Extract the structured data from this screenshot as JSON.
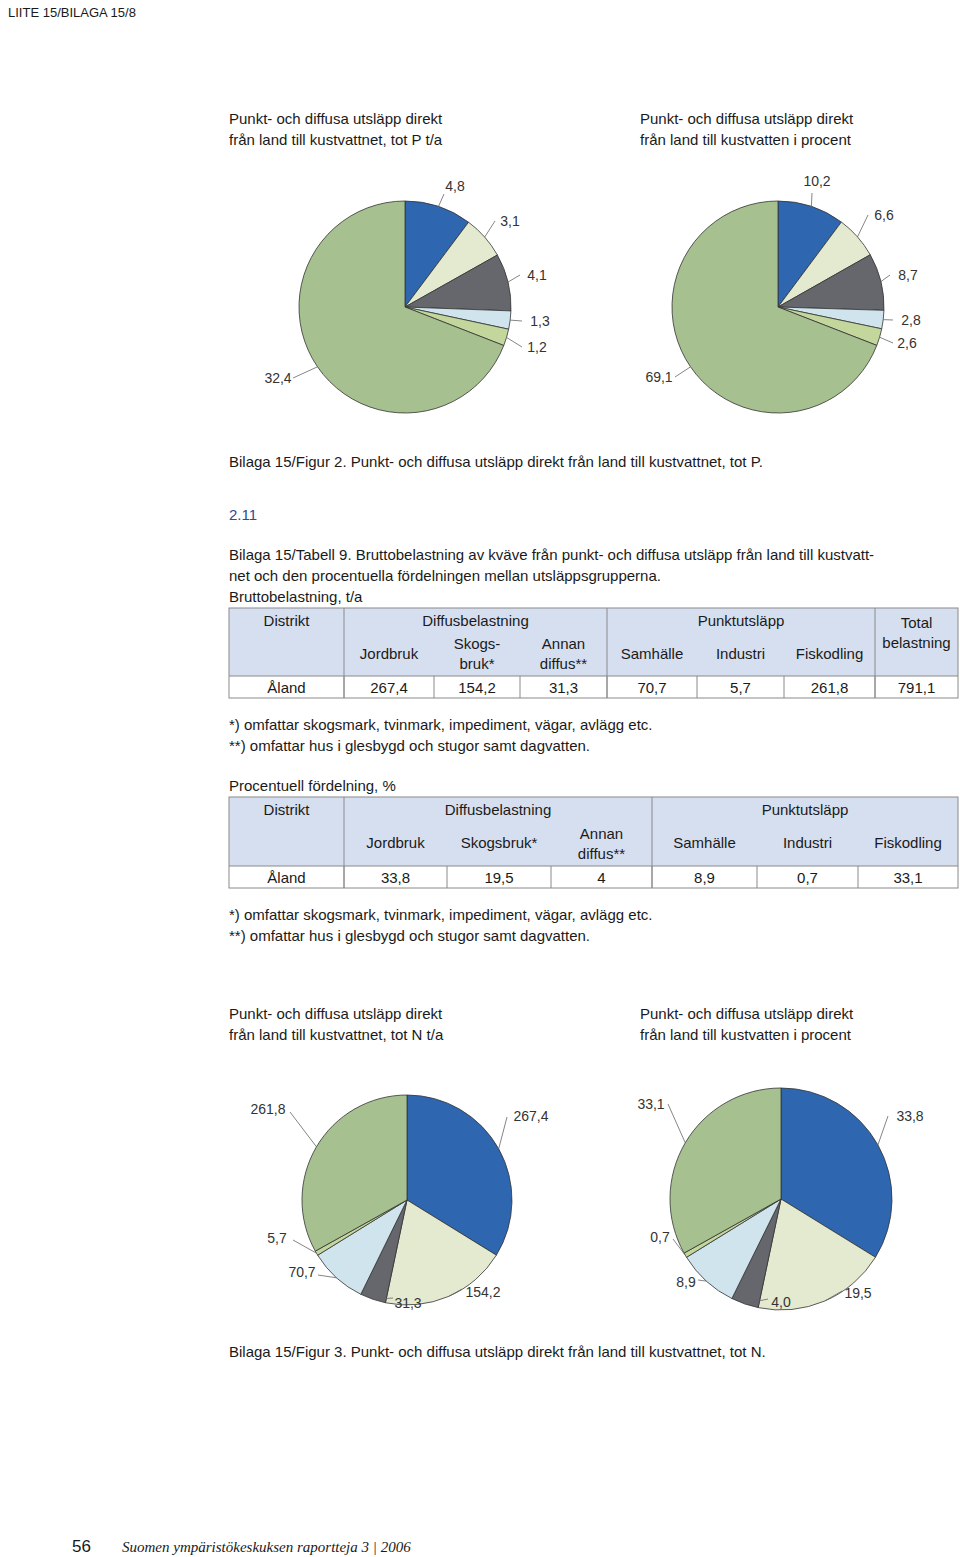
{
  "header": {
    "running_head": "LIITE 15/BILAGA 15/8"
  },
  "chart_data": [
    {
      "type": "pie",
      "title": [
        "Punkt- och diffusa utsläpp direkt",
        "från land till kustvattnet, tot P t/a"
      ],
      "values": [
        4.8,
        3.1,
        4.1,
        1.3,
        1.2,
        32.4
      ],
      "value_labels": [
        "4,8",
        "3,1",
        "4,1",
        "1,3",
        "1,2",
        "32,4"
      ],
      "colors": [
        "#2f66b0",
        "#e4eacf",
        "#66666d",
        "#cfe4ec",
        "#c3d69b",
        "#a6c18f"
      ],
      "data_labels": true
    },
    {
      "type": "pie",
      "title": [
        "Punkt- och diffusa utsläpp direkt",
        "från land till kustvatten i procent"
      ],
      "values": [
        10.2,
        6.6,
        8.7,
        2.8,
        2.6,
        69.1
      ],
      "value_labels": [
        "10,2",
        "6,6",
        "8,7",
        "2,8",
        "2,6",
        "69,1"
      ],
      "colors": [
        "#2f66b0",
        "#e4eacf",
        "#66666d",
        "#cfe4ec",
        "#c3d69b",
        "#a6c18f"
      ],
      "data_labels": true
    },
    {
      "type": "pie",
      "title": [
        "Punkt- och diffusa utsläpp direkt",
        "från land till kustvattnet, tot N t/a"
      ],
      "values": [
        267.4,
        154.2,
        31.3,
        70.7,
        5.7,
        261.8
      ],
      "value_labels": [
        "267,4",
        "154,2",
        "31,3",
        "70,7",
        "5,7",
        "261,8"
      ],
      "colors": [
        "#2f66b0",
        "#e4eacf",
        "#66666d",
        "#cfe4ec",
        "#c3d69b",
        "#a6c18f"
      ],
      "data_labels": true
    },
    {
      "type": "pie",
      "title": [
        "Punkt- och diffusa utsläpp direkt",
        "från land till kustvatten i procent"
      ],
      "values": [
        33.8,
        19.5,
        4.0,
        8.9,
        0.7,
        33.1
      ],
      "value_labels": [
        "33,8",
        "19,5",
        "4,0",
        "8,9",
        "0,7",
        "33,1"
      ],
      "colors": [
        "#2f66b0",
        "#e4eacf",
        "#66666d",
        "#cfe4ec",
        "#c3d69b",
        "#a6c18f"
      ],
      "data_labels": true
    }
  ],
  "figure2_caption": "Bilaga 15/Figur 2. Punkt- och diffusa utsläpp direkt från land till kustvattnet, tot P.",
  "section_number": "2.11",
  "table9": {
    "caption": [
      "Bilaga 15/Tabell 9. Bruttobelastning av kväve från punkt- och diffusa utsläpp från land till kustvatt-",
      "net och den procentuella fördelningen mellan utsläppsgrupperna."
    ],
    "subtitle": "Bruttobelastning, t/a",
    "headers": {
      "first": "Distrikt",
      "groups": [
        {
          "label": "Diffusbelastning",
          "columns": [
            [
              "Jordbruk"
            ],
            [
              "Skogs-",
              "bruk*"
            ],
            [
              "Annan",
              "diffus**"
            ]
          ]
        },
        {
          "label": "Punktutsläpp",
          "columns": [
            [
              "Samhälle"
            ],
            [
              "Industri"
            ],
            [
              "Fiskodling"
            ]
          ]
        }
      ],
      "total": [
        "Total",
        "belastning"
      ]
    },
    "rows": [
      [
        "Åland",
        "267,4",
        "154,2",
        "31,3",
        "70,7",
        "5,7",
        "261,8",
        "791,1"
      ]
    ],
    "footnotes": [
      "*) omfattar skogsmark, tvinmark, impediment, vägar, avlägg etc.",
      "**) omfattar hus i glesbygd och stugor samt dagvatten."
    ]
  },
  "table_percent": {
    "subtitle": "Procentuell fördelning, %",
    "headers": {
      "first": "Distrikt",
      "groups": [
        {
          "label": "Diffusbelastning",
          "columns": [
            [
              "Jordbruk"
            ],
            [
              "Skogsbruk*"
            ],
            [
              "Annan",
              "diffus**"
            ]
          ]
        },
        {
          "label": "Punktutsläpp",
          "columns": [
            [
              "Samhälle"
            ],
            [
              "Industri"
            ],
            [
              "Fiskodling"
            ]
          ]
        }
      ]
    },
    "rows": [
      [
        "Åland",
        "33,8",
        "19,5",
        "4",
        "8,9",
        "0,7",
        "33,1"
      ]
    ],
    "footnotes": [
      "*) omfattar skogsmark, tvinmark, impediment, vägar, avlägg etc.",
      "**) omfattar hus i glesbygd och stugor samt dagvatten."
    ]
  },
  "figure3_caption": "Bilaga 15/Figur 3. Punkt- och diffusa utsläpp direkt från land till kustvattnet, tot N.",
  "footer": {
    "page_number": "56",
    "series": "Suomen ympäristökeskuksen raportteja 3 | 2006"
  }
}
